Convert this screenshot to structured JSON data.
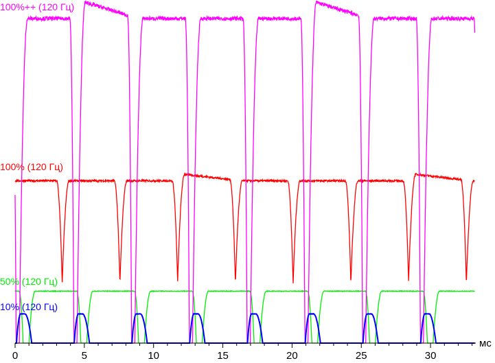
{
  "chart_data": {
    "type": "line",
    "title": "",
    "xlabel": "мс",
    "ylabel": "",
    "xlim": [
      0,
      33.3
    ],
    "ylim": [
      0,
      105
    ],
    "x_ticks": [
      0,
      5,
      10,
      15,
      20,
      25,
      30
    ],
    "minor_tick_step": 1,
    "grid": false,
    "period_ms": 4.17,
    "pulse_count": 8,
    "series": [
      {
        "name": "100%++ (120 Гц)",
        "color": "#ff00ff",
        "level": 100,
        "overshoot_level": 105,
        "overshoot_pulses": [
          1,
          5
        ],
        "pulse_ms": {
          "rise_start": 0.3,
          "rise_end": 0.9,
          "fall_start": 3.95,
          "fall_end": 4.25
        }
      },
      {
        "name": "100% (120 Гц)",
        "color": "#ff0000",
        "level": 50,
        "overshoot_level": 52,
        "overshoot_pulses": [
          3,
          7
        ],
        "pulse_ms": {
          "rise_start": -0.9,
          "rise_end": -0.27,
          "fall_start": 3.0,
          "fall_end": 3.5
        }
      },
      {
        "name": "50% (120 Гц)",
        "color": "#00ee00",
        "level": 16,
        "pulse_ms": {
          "rise_start": 1.0,
          "rise_end": 1.45,
          "fall_start": 4.45,
          "fall_end": 4.75
        }
      },
      {
        "name": "10% (120 Гц)",
        "color": "#0000ff",
        "level": 9,
        "pulse_ms": {
          "rise_start": 0.1,
          "rise_end": 0.4,
          "fall_start": 0.7,
          "fall_end": 1.2
        }
      }
    ]
  }
}
